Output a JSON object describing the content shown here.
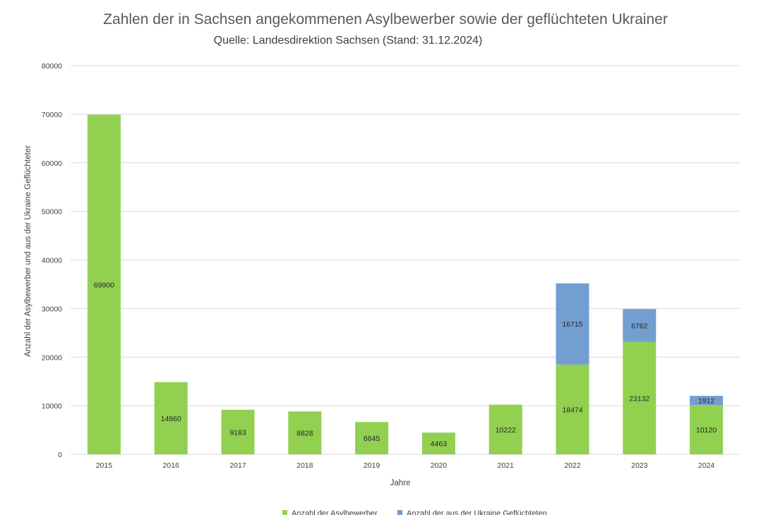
{
  "chart_data": {
    "type": "bar",
    "stacked": true,
    "title": "Zahlen der in Sachsen angekommenen Asylbewerber sowie der geflüchteten Ukrainer",
    "subtitle": "Quelle: Landesdirektion Sachsen (Stand: 31.12.2024)",
    "xlabel": "Jahre",
    "ylabel": "Anzahl der Asylbewerber und aus der Ukraine Geflüchteter",
    "ylim": [
      0,
      80000
    ],
    "yticks": [
      0,
      10000,
      20000,
      30000,
      40000,
      50000,
      60000,
      70000,
      80000
    ],
    "grid": true,
    "legend": "bottom",
    "categories": [
      "2015",
      "2016",
      "2017",
      "2018",
      "2019",
      "2020",
      "2021",
      "2022",
      "2023",
      "2024"
    ],
    "series": [
      {
        "name": "Anzahl der Asylbewerber",
        "color": "#92d050",
        "values": [
          69900,
          14860,
          9183,
          8828,
          6645,
          4463,
          10222,
          18474,
          23132,
          10120
        ]
      },
      {
        "name": "Anzahl der aus der Ukraine Geflüchteten",
        "color": "#729fcf",
        "values": [
          0,
          0,
          0,
          0,
          0,
          0,
          0,
          16715,
          6762,
          1912
        ]
      }
    ]
  }
}
